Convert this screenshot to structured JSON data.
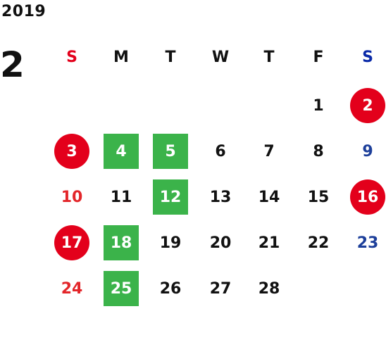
{
  "calendar": {
    "year": "2019",
    "month": "2",
    "weekdays": [
      "S",
      "M",
      "T",
      "W",
      "T",
      "F",
      "S"
    ],
    "weekday_colors": [
      "#e3001b",
      "#111111",
      "#111111",
      "#111111",
      "#111111",
      "#111111",
      "#0a2aa8"
    ],
    "colors": {
      "sunday_text": "#e3262a",
      "saturday_text": "#1d3f9a",
      "weekday_text": "#111111",
      "holiday_circle": "#e3001b",
      "highlight_square": "#3bb34a"
    },
    "weeks": [
      [
        null,
        null,
        null,
        null,
        null,
        {
          "day": "1",
          "style": "plain"
        },
        {
          "day": "2",
          "style": "circle"
        }
      ],
      [
        {
          "day": "3",
          "style": "circle"
        },
        {
          "day": "4",
          "style": "square"
        },
        {
          "day": "5",
          "style": "square"
        },
        {
          "day": "6",
          "style": "plain"
        },
        {
          "day": "7",
          "style": "plain"
        },
        {
          "day": "8",
          "style": "plain"
        },
        {
          "day": "9",
          "style": "plain"
        }
      ],
      [
        {
          "day": "10",
          "style": "plain"
        },
        {
          "day": "11",
          "style": "plain"
        },
        {
          "day": "12",
          "style": "square"
        },
        {
          "day": "13",
          "style": "plain"
        },
        {
          "day": "14",
          "style": "plain"
        },
        {
          "day": "15",
          "style": "plain"
        },
        {
          "day": "16",
          "style": "circle"
        }
      ],
      [
        {
          "day": "17",
          "style": "circle"
        },
        {
          "day": "18",
          "style": "square"
        },
        {
          "day": "19",
          "style": "plain"
        },
        {
          "day": "20",
          "style": "plain"
        },
        {
          "day": "21",
          "style": "plain"
        },
        {
          "day": "22",
          "style": "plain"
        },
        {
          "day": "23",
          "style": "plain"
        }
      ],
      [
        {
          "day": "24",
          "style": "plain"
        },
        {
          "day": "25",
          "style": "square"
        },
        {
          "day": "26",
          "style": "plain"
        },
        {
          "day": "27",
          "style": "plain"
        },
        {
          "day": "28",
          "style": "plain"
        },
        null,
        null
      ]
    ]
  }
}
